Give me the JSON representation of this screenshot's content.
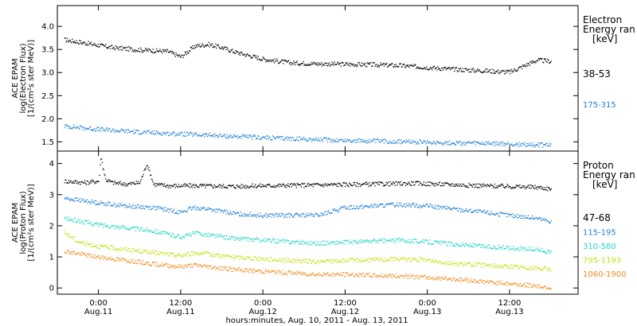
{
  "chart_data": [
    {
      "type": "scatter",
      "ylabel_lines": [
        "ACE EPAM",
        "log(Electron Flux)",
        "[1/(cm²s ster MeV)]"
      ],
      "ylim": [
        1.3,
        4.45
      ],
      "yticks": [
        "1.5",
        "2.0",
        "2.5",
        "3.0",
        "3.5",
        "4.0"
      ],
      "ytick_values": [
        1.5,
        2.0,
        2.5,
        3.0,
        3.5,
        4.0
      ],
      "legend_title": [
        "Electron",
        "Energy ran",
        "[keV]"
      ],
      "series": [
        {
          "name": "38-53",
          "color": "#000000",
          "x": [
            -5,
            0,
            2,
            6,
            10,
            12,
            14,
            16,
            18,
            20,
            24,
            28,
            32,
            36,
            40,
            44,
            48,
            52,
            56,
            60,
            62,
            64,
            66
          ],
          "y": [
            3.72,
            3.6,
            3.55,
            3.5,
            3.47,
            3.35,
            3.58,
            3.62,
            3.55,
            3.45,
            3.3,
            3.22,
            3.2,
            3.19,
            3.18,
            3.16,
            3.12,
            3.08,
            3.05,
            3.02,
            3.15,
            3.28,
            3.25
          ]
        },
        {
          "name": "175-315",
          "color": "#1e7fd6",
          "x": [
            -5,
            0,
            6,
            12,
            18,
            24,
            30,
            36,
            42,
            48,
            54,
            60,
            66
          ],
          "y": [
            1.85,
            1.78,
            1.72,
            1.68,
            1.64,
            1.6,
            1.57,
            1.54,
            1.52,
            1.5,
            1.48,
            1.46,
            1.44
          ]
        }
      ]
    },
    {
      "type": "scatter",
      "ylabel_lines": [
        "ACE EPAM",
        "log(Proton Flux)",
        "[1/(cm²s ster MeV)]"
      ],
      "ylim": [
        -0.2,
        4.4
      ],
      "yticks": [
        "0",
        "1",
        "2",
        "3",
        "4"
      ],
      "ytick_values": [
        0,
        1,
        2,
        3,
        4
      ],
      "legend_title": [
        "Proton",
        "Energy ran",
        "[keV]"
      ],
      "series": [
        {
          "name": "47-68",
          "color": "#000000",
          "x": [
            -5,
            -2,
            0,
            0.3,
            0.6,
            1,
            2,
            4,
            6,
            7,
            7.5,
            8,
            10,
            14,
            20,
            24,
            30,
            36,
            42,
            46,
            50,
            56,
            60,
            64,
            66
          ],
          "y": [
            3.45,
            3.4,
            3.45,
            4.25,
            3.9,
            3.5,
            3.4,
            3.35,
            3.4,
            4.0,
            3.7,
            3.35,
            3.3,
            3.3,
            3.28,
            3.3,
            3.32,
            3.34,
            3.36,
            3.38,
            3.35,
            3.3,
            3.28,
            3.25,
            3.2
          ]
        },
        {
          "name": "115-195",
          "color": "#1e7fd6",
          "x": [
            -5,
            0,
            4,
            8,
            12,
            14,
            16,
            20,
            24,
            28,
            32,
            36,
            40,
            44,
            48,
            52,
            56,
            60,
            64,
            66
          ],
          "y": [
            2.9,
            2.75,
            2.65,
            2.6,
            2.45,
            2.6,
            2.55,
            2.4,
            2.35,
            2.35,
            2.35,
            2.6,
            2.65,
            2.7,
            2.65,
            2.55,
            2.45,
            2.35,
            2.25,
            2.15
          ]
        },
        {
          "name": "310-580",
          "color": "#22d6c8",
          "x": [
            -5,
            0,
            4,
            8,
            12,
            14,
            16,
            20,
            24,
            28,
            32,
            36,
            40,
            44,
            48,
            52,
            56,
            60,
            64,
            66
          ],
          "y": [
            2.25,
            2.05,
            1.95,
            1.85,
            1.65,
            1.78,
            1.72,
            1.6,
            1.55,
            1.5,
            1.45,
            1.48,
            1.52,
            1.55,
            1.5,
            1.42,
            1.35,
            1.3,
            1.25,
            1.15
          ]
        },
        {
          "name": "795-1193",
          "color": "#c5e012",
          "x": [
            -5,
            -3,
            0,
            4,
            8,
            12,
            14,
            16,
            20,
            24,
            28,
            32,
            36,
            40,
            44,
            48,
            52,
            56,
            60,
            64,
            66
          ],
          "y": [
            1.8,
            1.5,
            1.35,
            1.25,
            1.15,
            1.05,
            1.15,
            1.1,
            1.0,
            0.95,
            0.9,
            0.85,
            0.9,
            0.92,
            0.95,
            0.9,
            0.8,
            0.75,
            0.7,
            0.65,
            0.6
          ]
        },
        {
          "name": "1060-1900",
          "color": "#f08a1c",
          "x": [
            -5,
            0,
            4,
            8,
            12,
            14,
            16,
            20,
            24,
            28,
            32,
            36,
            40,
            44,
            48,
            52,
            56,
            60,
            64,
            66
          ],
          "y": [
            1.2,
            1.0,
            0.9,
            0.78,
            0.7,
            0.75,
            0.7,
            0.6,
            0.55,
            0.5,
            0.45,
            0.45,
            0.42,
            0.4,
            0.35,
            0.3,
            0.22,
            0.15,
            0.08,
            0.02
          ]
        }
      ]
    }
  ],
  "x_axis": {
    "xlim": [
      -6,
      70
    ],
    "tick_hours": [
      0,
      12,
      24,
      36,
      48,
      60
    ],
    "tick_labels": [
      [
        "0:00",
        "Aug.11"
      ],
      [
        "12:00",
        "Aug.11"
      ],
      [
        "0:00",
        "Aug.12"
      ],
      [
        "12:00",
        "Aug.12"
      ],
      [
        "0:00",
        "Aug.13"
      ],
      [
        "12:00",
        "Aug.13"
      ]
    ],
    "title": "hours:minutes, Aug. 10, 2011 - Aug. 13, 2011"
  }
}
